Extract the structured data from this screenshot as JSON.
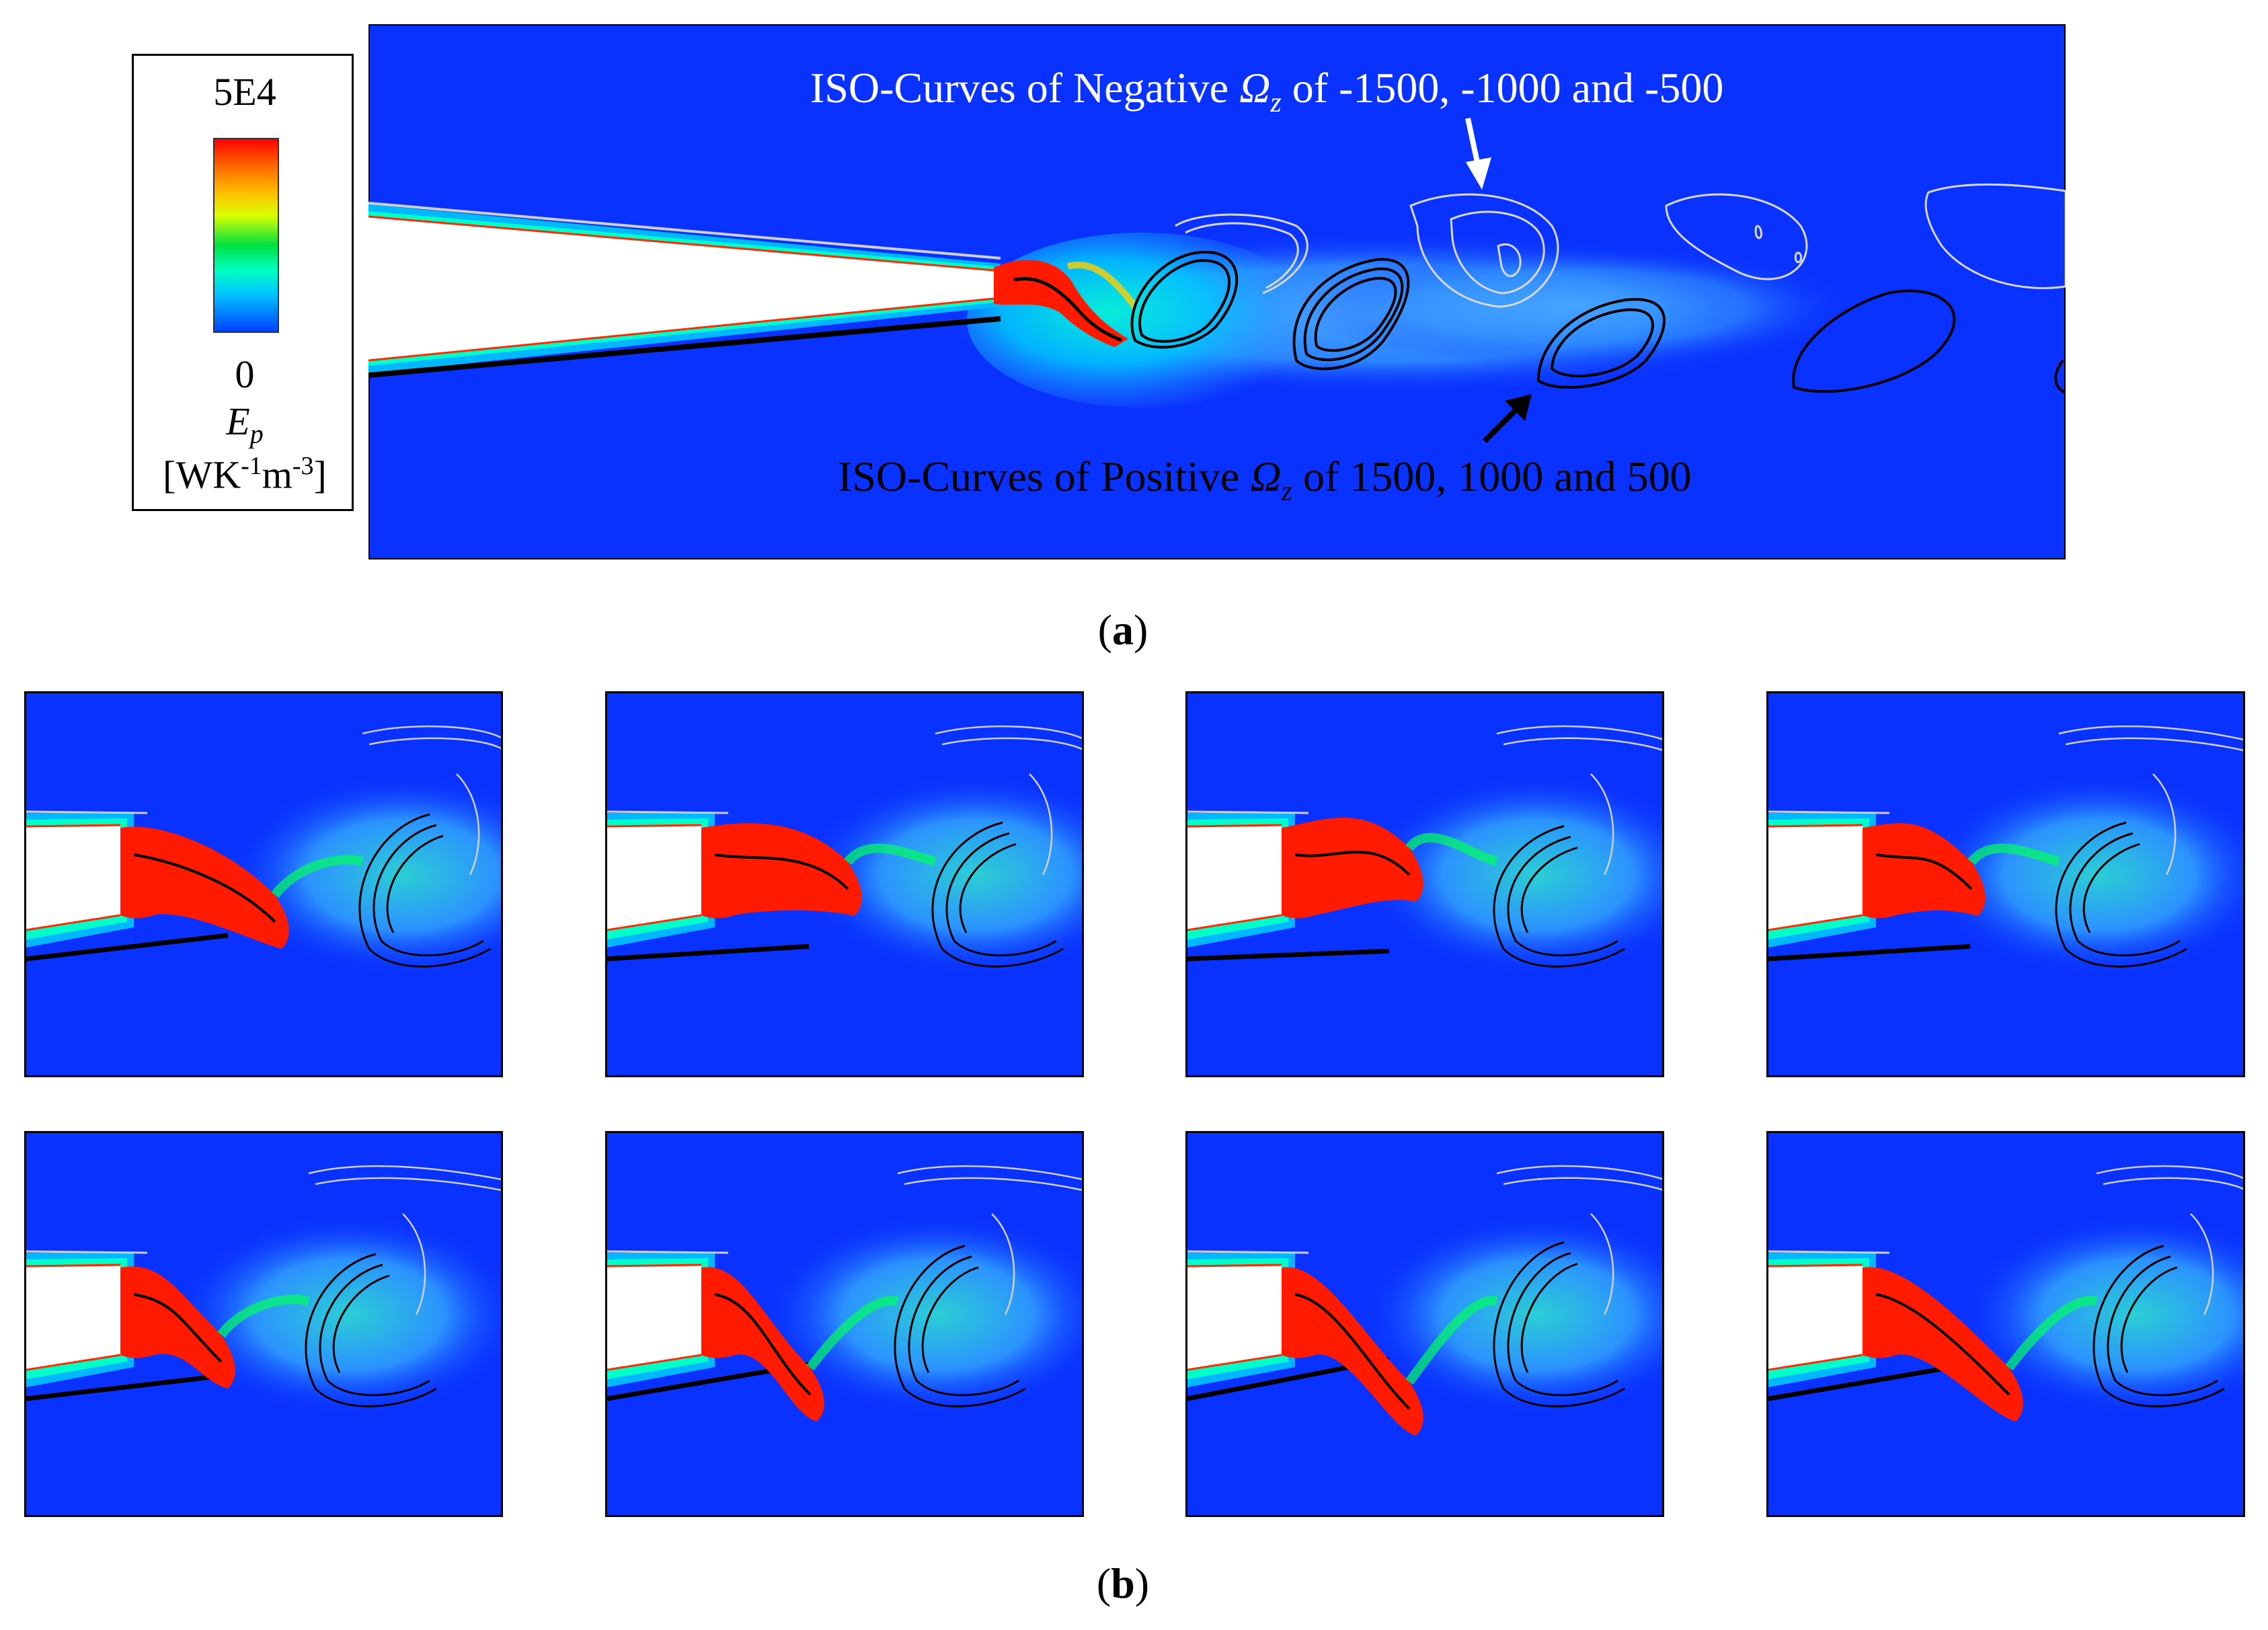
{
  "legend": {
    "max_label": "5E4",
    "min_label": "0",
    "symbol": "E",
    "symbol_sub": "p",
    "unit_prefix": "[WK",
    "unit_exp1": "-1",
    "unit_mid": "m",
    "unit_exp2": "-3",
    "unit_suffix": "]",
    "colormap": [
      "#0040ff",
      "#00c8ff",
      "#00ffc0",
      "#00e040",
      "#d8ff00",
      "#ffc000",
      "#ff5a00",
      "#ff0000"
    ]
  },
  "panel_a": {
    "label_open": "(",
    "label": "a",
    "label_close": ")",
    "annotation_negative": {
      "prefix": "ISO-Curves of Negative ",
      "symbol": "Ω",
      "sub": "z",
      "suffix": " of -1500, -1000 and -500"
    },
    "annotation_positive": {
      "prefix": "ISO-Curves of Positive ",
      "symbol": "Ω",
      "sub": "z",
      "suffix": " of 1500, 1000 and 500"
    },
    "colors": {
      "background": "#0a32ff",
      "negative_curves": "#d8d8d8",
      "positive_curves": "#000000"
    }
  },
  "panel_b": {
    "label_open": "(",
    "label": "b",
    "label_close": ")",
    "frames": 8,
    "frame_phase": [
      0,
      1,
      2,
      3,
      4,
      5,
      6,
      7
    ]
  }
}
